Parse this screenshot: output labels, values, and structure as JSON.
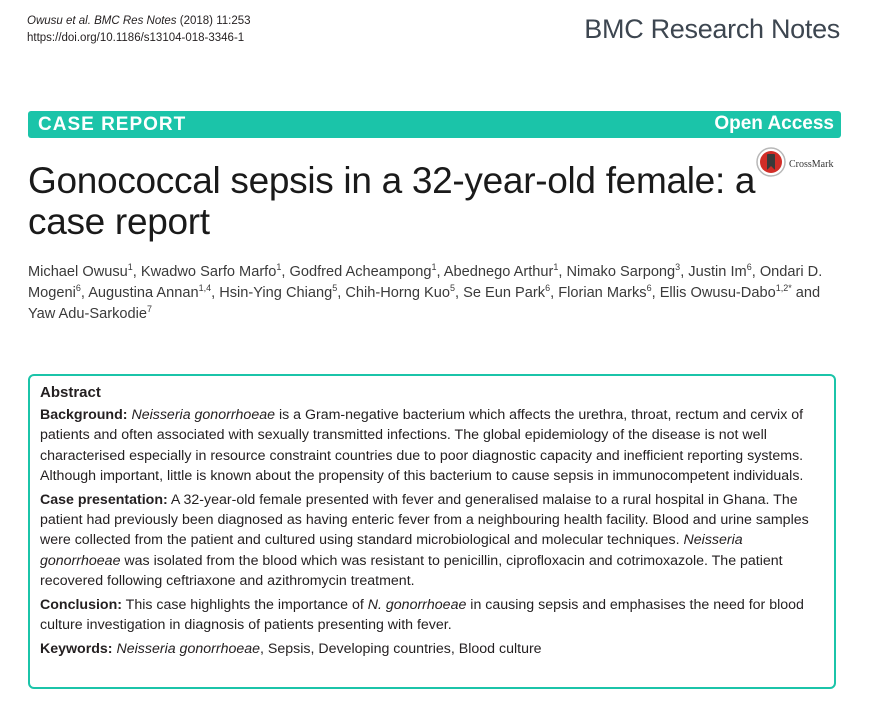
{
  "header": {
    "citation_journal": "Owusu et al. BMC Res Notes",
    "citation_rest": " (2018) 11:253",
    "doi": "https://doi.org/10.1186/s13104-018-3346-1",
    "journal_name": "BMC Research Notes"
  },
  "banner": {
    "article_type": "CASE REPORT",
    "access": "Open Access",
    "color": "#1bc4a9"
  },
  "crossmark": {
    "label": "CrossMark",
    "icon": "crossmark-icon"
  },
  "title": "Gonococcal sepsis in a 32-year-old female: a case report",
  "authors": [
    {
      "name": "Michael Owusu",
      "aff": "1"
    },
    {
      "name": "Kwadwo Sarfo Marfo",
      "aff": "1"
    },
    {
      "name": "Godfred Acheampong",
      "aff": "1"
    },
    {
      "name": "Abednego Arthur",
      "aff": "1"
    },
    {
      "name": "Nimako Sarpong",
      "aff": "3"
    },
    {
      "name": "Justin Im",
      "aff": "6"
    },
    {
      "name": "Ondari D. Mogeni",
      "aff": "6"
    },
    {
      "name": "Augustina Annan",
      "aff": "1,4"
    },
    {
      "name": "Hsin‑Ying Chiang",
      "aff": "5"
    },
    {
      "name": "Chih‑Horng Kuo",
      "aff": "5"
    },
    {
      "name": "Se Eun Park",
      "aff": "6"
    },
    {
      "name": "Florian Marks",
      "aff": "6"
    },
    {
      "name": "Ellis Owusu‑Dabo",
      "aff": "1,2*"
    },
    {
      "name": "Yaw Adu‑Sarkodie",
      "aff": "7"
    }
  ],
  "abstract": {
    "heading": "Abstract",
    "background_label": "Background:",
    "background_italic": "Neisseria gonorrhoeae",
    "background_text": " is a Gram-negative bacterium which affects the urethra, throat, rectum and cervix of patients and often associated with sexually transmitted infections. The global epidemiology of the disease is not well characterised especially in resource constraint countries due to poor diagnostic capacity and inefficient reporting systems. Although important, little is known about the propensity of this bacterium to cause sepsis in immunocompetent individuals.",
    "case_label": "Case presentation:",
    "case_text_1": " A 32-year-old female presented with fever and generalised malaise to a rural hospital in Ghana. The patient had previously been diagnosed as having enteric fever from a neighbouring health facility. Blood and urine samples were collected from the patient and cultured using standard microbiological and molecular techniques. ",
    "case_italic": "Neisseria gonorrhoeae",
    "case_text_2": " was isolated from the blood which was resistant to penicillin, ciprofloxacin and cotrimoxazole. The patient recovered following ceftriaxone and azithromycin treatment.",
    "conclusion_label": "Conclusion:",
    "conclusion_text_1": " This case highlights the importance of ",
    "conclusion_italic": "N. gonorrhoeae",
    "conclusion_text_2": " in causing sepsis and emphasises the need for blood culture investigation in diagnosis of patients presenting with fever.",
    "keywords_label": "Keywords:",
    "keywords_italic": "Neisseria gonorrhoeae",
    "keywords_text": ", Sepsis, Developing countries, Blood culture"
  }
}
